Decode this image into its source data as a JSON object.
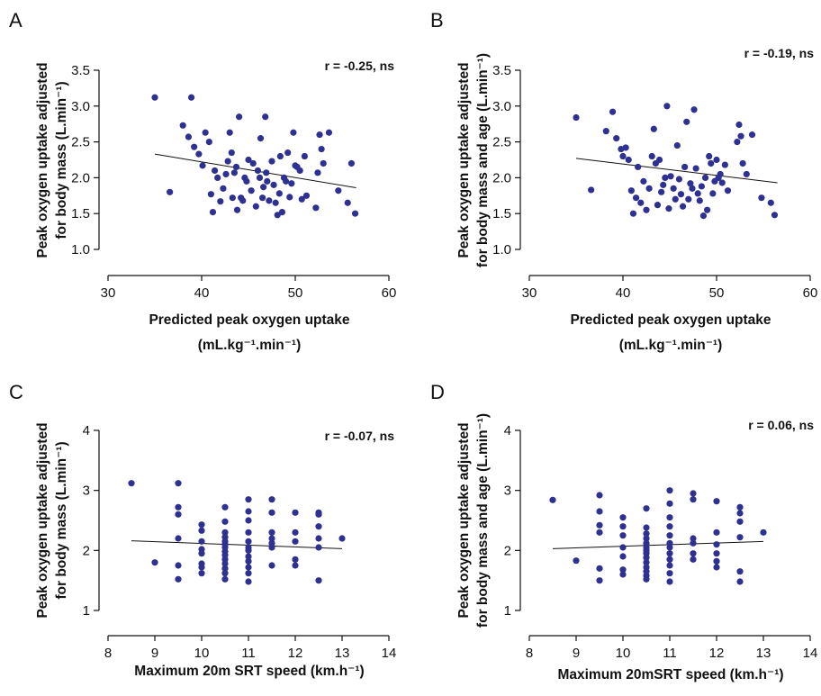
{
  "colors": {
    "points": "#2e3192",
    "fit_line": "#111111",
    "axes": "#111111"
  },
  "chart_data": [
    {
      "type": "scatter",
      "panel": "A",
      "annotation": "r = -0.25, ns",
      "ylabel_lines": [
        "Peak oxygen uptake adjusted",
        "for body mass (L.min⁻¹)"
      ],
      "xlabel_lines": [
        "Predicted peak oxygen uptake",
        "(mL.kg⁻¹.min⁻¹)"
      ],
      "xlim": [
        30,
        60
      ],
      "ylim": [
        1.0,
        3.5
      ],
      "xticks": [
        30,
        40,
        50,
        60
      ],
      "yticks": [
        1.0,
        1.5,
        2.0,
        2.5,
        3.0,
        3.5
      ],
      "ytick_labels": [
        "1.0",
        "1.5",
        "2.0",
        "2.5",
        "3.0",
        "3.5"
      ],
      "fit": {
        "x": [
          35,
          56.5
        ],
        "y": [
          2.33,
          1.86
        ]
      },
      "x": [
        35.0,
        36.6,
        38.0,
        38.6,
        38.9,
        39.2,
        39.7,
        40.1,
        40.4,
        40.8,
        41.0,
        41.2,
        41.4,
        41.7,
        42.0,
        42.3,
        42.6,
        42.8,
        43.0,
        43.2,
        43.3,
        43.5,
        43.7,
        43.8,
        44.0,
        44.2,
        44.4,
        44.6,
        44.8,
        45.0,
        45.3,
        45.5,
        45.8,
        46.0,
        46.2,
        46.3,
        46.5,
        46.6,
        46.8,
        46.9,
        47.0,
        47.2,
        47.5,
        47.7,
        47.9,
        48.1,
        48.3,
        48.4,
        48.6,
        48.8,
        49.0,
        49.2,
        49.4,
        49.6,
        49.8,
        50.0,
        50.2,
        50.5,
        50.7,
        51.0,
        51.2,
        52.2,
        52.4,
        52.6,
        52.8,
        53.0,
        53.6,
        54.6,
        55.6,
        56.0,
        56.4
      ],
      "y": [
        3.12,
        1.8,
        2.73,
        2.57,
        3.12,
        2.43,
        2.33,
        2.17,
        2.63,
        2.5,
        1.77,
        1.52,
        2.1,
        2.0,
        1.67,
        1.85,
        2.05,
        2.23,
        2.63,
        2.35,
        1.72,
        2.07,
        2.15,
        1.55,
        2.85,
        1.72,
        1.68,
        2.0,
        1.95,
        2.25,
        1.82,
        2.2,
        1.6,
        2.1,
        2.0,
        2.55,
        1.72,
        1.87,
        2.85,
        2.07,
        1.95,
        1.68,
        2.23,
        1.9,
        1.65,
        1.48,
        1.78,
        2.3,
        1.52,
        2.0,
        1.95,
        2.35,
        1.73,
        1.92,
        2.63,
        2.17,
        2.15,
        2.1,
        1.7,
        2.3,
        1.75,
        1.58,
        2.07,
        2.6,
        2.4,
        2.2,
        2.63,
        1.82,
        1.65,
        2.2,
        1.5
      ]
    },
    {
      "type": "scatter",
      "panel": "B",
      "annotation": "r = -0.19, ns",
      "ylabel_lines": [
        "Peak oxygen uptake adjusted",
        "for body mass and age (L.min⁻¹)"
      ],
      "xlabel_lines": [
        "Predicted peak oxygen uptake",
        "(mL.kg⁻¹.min⁻¹)"
      ],
      "xlim": [
        30,
        60
      ],
      "ylim": [
        1.0,
        3.5
      ],
      "xticks": [
        30,
        40,
        50,
        60
      ],
      "yticks": [
        1.0,
        1.5,
        2.0,
        2.5,
        3.0,
        3.5
      ],
      "ytick_labels": [
        "1.0",
        "1.5",
        "2.0",
        "2.5",
        "3.0",
        "3.5"
      ],
      "fit": {
        "x": [
          35,
          56.5
        ],
        "y": [
          2.27,
          1.93
        ]
      },
      "x": [
        35.0,
        36.6,
        38.2,
        38.9,
        39.3,
        39.8,
        40.0,
        40.3,
        40.6,
        40.9,
        41.1,
        41.4,
        41.6,
        41.9,
        42.2,
        42.5,
        42.8,
        43.1,
        43.3,
        43.5,
        43.7,
        43.9,
        44.1,
        44.3,
        44.5,
        44.7,
        44.9,
        45.1,
        45.4,
        45.6,
        45.8,
        46.0,
        46.2,
        46.4,
        46.6,
        46.8,
        47.0,
        47.2,
        47.4,
        47.6,
        47.8,
        48.0,
        48.2,
        48.4,
        48.6,
        48.8,
        49.0,
        49.2,
        49.4,
        49.6,
        49.8,
        50.0,
        50.2,
        50.4,
        50.6,
        50.9,
        51.2,
        52.2,
        52.4,
        52.6,
        52.8,
        53.2,
        53.8,
        54.8,
        55.8,
        56.2
      ],
      "y": [
        2.84,
        1.83,
        2.65,
        2.92,
        2.55,
        2.4,
        2.3,
        2.42,
        2.25,
        1.82,
        1.5,
        1.72,
        2.15,
        1.65,
        1.95,
        1.55,
        1.85,
        2.3,
        2.68,
        2.2,
        1.62,
        2.25,
        1.8,
        1.9,
        2.0,
        3.0,
        1.57,
        2.02,
        1.85,
        1.7,
        2.45,
        1.98,
        1.77,
        1.6,
        2.15,
        2.78,
        1.7,
        1.92,
        1.85,
        2.95,
        2.13,
        1.78,
        1.68,
        1.88,
        1.47,
        2.0,
        1.55,
        2.3,
        2.2,
        1.78,
        1.95,
        2.25,
        2.0,
        2.05,
        1.93,
        2.18,
        1.82,
        2.5,
        2.74,
        2.58,
        2.2,
        2.05,
        2.6,
        1.72,
        1.65,
        1.48
      ]
    },
    {
      "type": "scatter",
      "panel": "C",
      "annotation": "r = -0.07, ns",
      "ylabel_lines": [
        "Peak oxygen uptake adjusted",
        "for body mass (L.min⁻¹)"
      ],
      "xlabel_lines": [
        "Maximum 20m SRT speed (km.h⁻¹)"
      ],
      "xlim": [
        8,
        14
      ],
      "ylim": [
        1,
        4
      ],
      "xticks": [
        8,
        9,
        10,
        11,
        12,
        13,
        14
      ],
      "yticks": [
        1,
        2,
        3,
        4
      ],
      "ytick_labels": [
        "1",
        "2",
        "3",
        "4"
      ],
      "fit": {
        "x": [
          8.5,
          13
        ],
        "y": [
          2.16,
          2.03
        ]
      },
      "x": [
        8.5,
        9,
        9.5,
        9.5,
        9.5,
        9.5,
        9.5,
        9.5,
        10,
        10,
        10,
        10,
        10,
        10,
        10,
        10,
        10.5,
        10.5,
        10.5,
        10.5,
        10.5,
        10.5,
        10.5,
        10.5,
        10.5,
        10.5,
        10.5,
        10.5,
        10.5,
        10.5,
        11,
        11,
        11,
        11,
        11,
        11,
        11,
        11,
        11,
        11,
        11,
        11,
        11.5,
        11.5,
        11.5,
        11.5,
        11.5,
        11.5,
        11.5,
        12,
        12,
        12,
        12,
        12,
        12.5,
        12.5,
        12.5,
        12.5,
        12.5,
        12.5,
        13
      ],
      "y": [
        3.12,
        1.8,
        3.12,
        2.72,
        2.6,
        2.2,
        1.75,
        1.52,
        2.43,
        2.33,
        2.15,
        2.02,
        1.95,
        1.78,
        1.72,
        1.62,
        2.72,
        2.48,
        2.3,
        2.22,
        2.15,
        2.1,
        2.05,
        1.98,
        1.92,
        1.85,
        1.78,
        1.7,
        1.62,
        1.52,
        2.85,
        2.65,
        2.5,
        2.3,
        2.15,
        2.05,
        2.0,
        1.9,
        1.82,
        1.72,
        1.62,
        1.48,
        2.85,
        2.63,
        2.3,
        2.2,
        2.12,
        2.05,
        1.75,
        2.63,
        2.3,
        2.15,
        1.85,
        1.75,
        2.63,
        2.6,
        2.4,
        2.2,
        2.05,
        1.5,
        2.2
      ]
    },
    {
      "type": "scatter",
      "panel": "D",
      "annotation": "r = 0.06, ns",
      "ylabel_lines": [
        "Peak oxygen uptake adjusted",
        "for body mass and age (L.min⁻¹)"
      ],
      "xlabel_lines": [
        "Maximum 20mSRT speed (km.h⁻¹)"
      ],
      "xlim": [
        8,
        14
      ],
      "ylim": [
        1,
        4
      ],
      "xticks": [
        8,
        9,
        10,
        11,
        12,
        13,
        14
      ],
      "yticks": [
        1,
        2,
        3,
        4
      ],
      "ytick_labels": [
        "1",
        "2",
        "3",
        "4"
      ],
      "fit": {
        "x": [
          8.5,
          13
        ],
        "y": [
          2.03,
          2.15
        ]
      },
      "x": [
        8.5,
        9,
        9.5,
        9.5,
        9.5,
        9.5,
        9.5,
        9.5,
        10,
        10,
        10,
        10,
        10,
        10,
        10,
        10.5,
        10.5,
        10.5,
        10.5,
        10.5,
        10.5,
        10.5,
        10.5,
        10.5,
        10.5,
        10.5,
        10.5,
        10.5,
        10.5,
        11,
        11,
        11,
        11,
        11,
        11,
        11,
        11,
        11,
        11,
        11,
        11,
        11.5,
        11.5,
        11.5,
        11.5,
        11.5,
        11.5,
        12,
        12,
        12,
        12,
        12,
        12,
        12.5,
        12.5,
        12.5,
        12.5,
        12.5,
        12.5,
        13
      ],
      "y": [
        2.84,
        1.83,
        2.92,
        2.65,
        2.42,
        2.3,
        1.7,
        1.5,
        2.55,
        2.4,
        2.25,
        2.05,
        1.9,
        1.68,
        1.6,
        2.7,
        2.38,
        2.28,
        2.2,
        2.12,
        2.05,
        2.0,
        1.95,
        1.88,
        1.8,
        1.72,
        1.65,
        1.58,
        1.52,
        3.0,
        2.78,
        2.55,
        2.4,
        2.25,
        2.12,
        2.05,
        1.95,
        1.85,
        1.75,
        1.62,
        1.48,
        2.95,
        2.85,
        2.2,
        2.12,
        1.95,
        1.85,
        2.82,
        2.3,
        2.1,
        1.95,
        1.82,
        1.72,
        2.72,
        2.62,
        2.48,
        2.22,
        1.65,
        1.48,
        2.3
      ]
    }
  ]
}
